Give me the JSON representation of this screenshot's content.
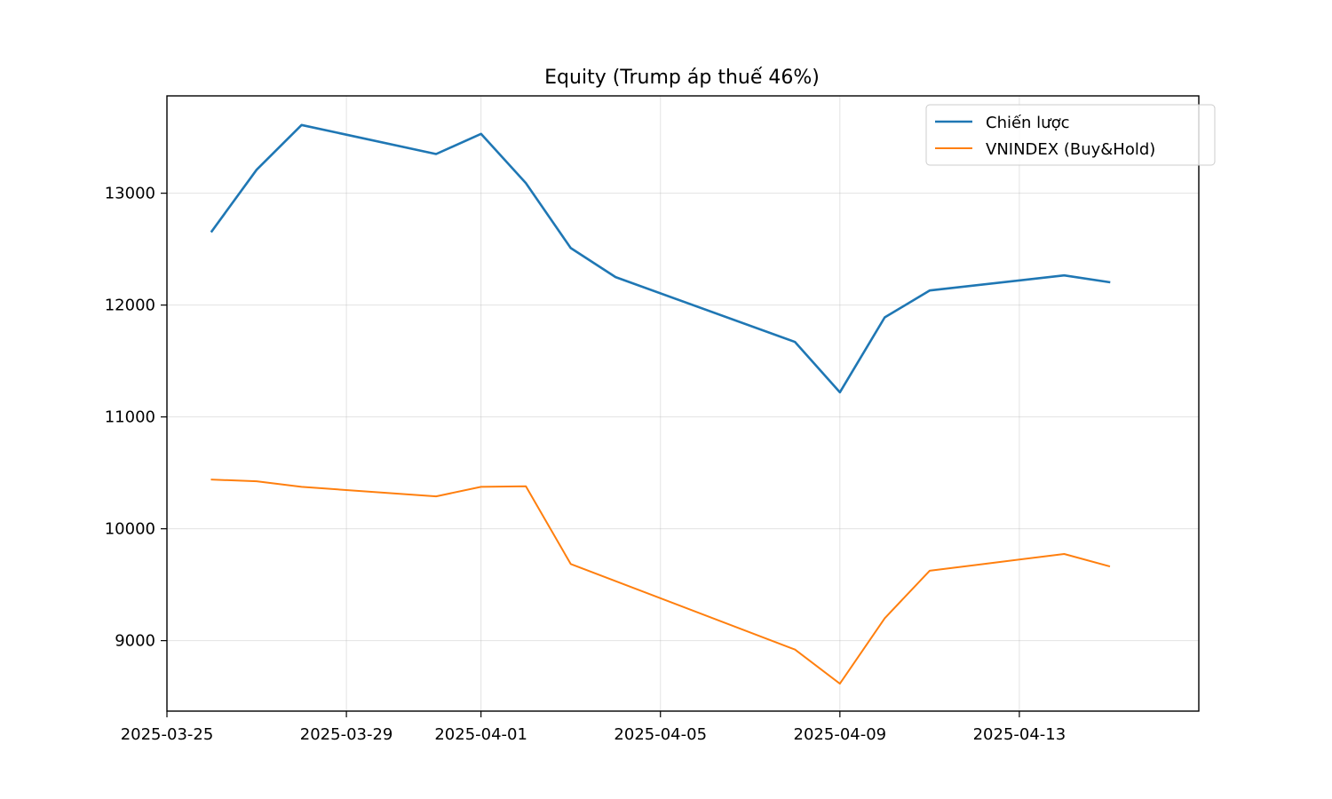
{
  "chart_data": {
    "type": "line",
    "title": "Equity (Trump áp thuế 46%)",
    "xlabel": "",
    "ylabel": "",
    "x_ticks": [
      "2025-03-25",
      "2025-03-29",
      "2025-04-01",
      "2025-04-05",
      "2025-04-09",
      "2025-04-13"
    ],
    "y_ticks": [
      9000,
      10000,
      11000,
      12000,
      13000
    ],
    "xlim": [
      "2025-03-25",
      "2025-04-17"
    ],
    "ylim": [
      8370,
      13870
    ],
    "grid": true,
    "legend_position": "top-right",
    "series": [
      {
        "name": "Chiến lược",
        "color": "#1f77b4",
        "points": [
          [
            "2025-03-26",
            12660
          ],
          [
            "2025-03-27",
            13210
          ],
          [
            "2025-03-28",
            13610
          ],
          [
            "2025-03-31",
            13350
          ],
          [
            "2025-04-01",
            13530
          ],
          [
            "2025-04-02",
            13090
          ],
          [
            "2025-04-03",
            12510
          ],
          [
            "2025-04-04",
            12250
          ],
          [
            "2025-04-08",
            11670
          ],
          [
            "2025-04-09",
            11220
          ],
          [
            "2025-04-10",
            11890
          ],
          [
            "2025-04-11",
            12130
          ],
          [
            "2025-04-14",
            12265
          ],
          [
            "2025-04-15",
            12205
          ]
        ]
      },
      {
        "name": "VNINDEX (Buy&Hold)",
        "color": "#ff7f0e",
        "points": [
          [
            "2025-03-26",
            10440
          ],
          [
            "2025-03-27",
            10425
          ],
          [
            "2025-03-28",
            10375
          ],
          [
            "2025-03-31",
            10290
          ],
          [
            "2025-04-01",
            10375
          ],
          [
            "2025-04-02",
            10380
          ],
          [
            "2025-04-03",
            9685
          ],
          [
            "2025-04-08",
            8920
          ],
          [
            "2025-04-09",
            8615
          ],
          [
            "2025-04-10",
            9200
          ],
          [
            "2025-04-11",
            9625
          ],
          [
            "2025-04-14",
            9775
          ],
          [
            "2025-04-15",
            9665
          ]
        ]
      }
    ]
  }
}
